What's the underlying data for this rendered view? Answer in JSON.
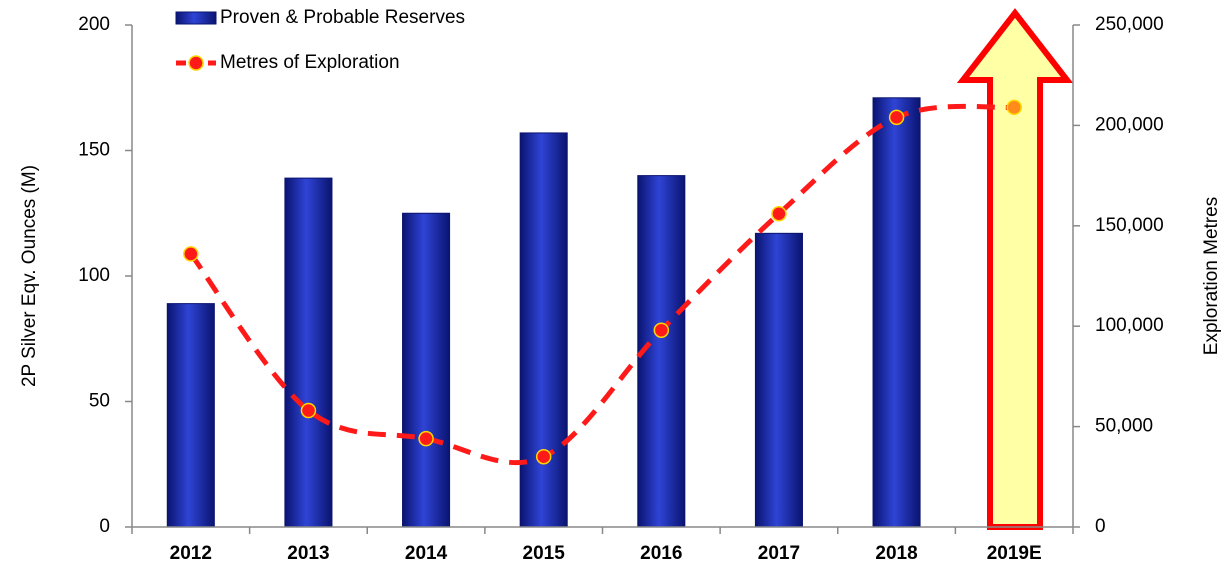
{
  "chart_data": {
    "type": "bar_line",
    "categories": [
      "2012",
      "2013",
      "2014",
      "2015",
      "2016",
      "2017",
      "2018",
      "2019E"
    ],
    "series": [
      {
        "name": "Proven & Probable Reserves",
        "type": "bar",
        "color": "#1a2aa8",
        "values": [
          89,
          139,
          125,
          157,
          140,
          117,
          171,
          null
        ]
      },
      {
        "name": "Metres of Exploration",
        "type": "line",
        "axis": "y2",
        "color": "#ff1a1a",
        "marker_colors": [
          "#ff1a1a",
          "#ff1a1a",
          "#ff1a1a",
          "#ff1a1a",
          "#ff1a1a",
          "#ff1a1a",
          "#ff1a1a",
          "#ff8c1a"
        ],
        "values": [
          136000,
          58000,
          44000,
          35000,
          98000,
          156000,
          204000,
          209000
        ]
      }
    ],
    "ylabel": "2P Silver Eqv. Ounces (M)",
    "y2label": "Exploration Metres",
    "ylim": [
      0,
      200
    ],
    "yticks": [
      0,
      50,
      100,
      150,
      200
    ],
    "y2lim": [
      0,
      250000
    ],
    "y2ticks": [
      0,
      {
        "value": 50000,
        "label": "50,000"
      },
      {
        "value": 100000,
        "label": "100,000"
      },
      {
        "value": 150000,
        "label": "150,000"
      },
      {
        "value": 200000,
        "label": "200,000"
      },
      {
        "value": 250000,
        "label": "250,000"
      }
    ],
    "grid": false,
    "legend": "top-left"
  }
}
